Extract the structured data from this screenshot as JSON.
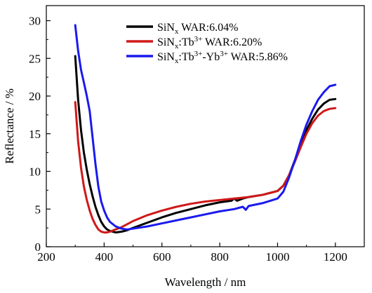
{
  "chart_data": {
    "type": "line",
    "xlabel": "Wavelength / nm",
    "ylabel": "Reflectance / %",
    "xlim": [
      200,
      1300
    ],
    "ylim": [
      0,
      32
    ],
    "x_ticks": [
      200,
      400,
      600,
      800,
      1000,
      1200
    ],
    "y_ticks": [
      0,
      5,
      10,
      15,
      20,
      25,
      30
    ],
    "legend_position": "top-center",
    "series": [
      {
        "name": "SiN_x WAR:6.04%",
        "legend": {
          "base": "SiN",
          "sub": "x",
          "rest": " WAR:6.04%"
        },
        "color": "#000000",
        "x": [
          300,
          310,
          320,
          330,
          340,
          350,
          360,
          370,
          380,
          390,
          400,
          410,
          420,
          440,
          460,
          480,
          500,
          550,
          600,
          650,
          700,
          750,
          800,
          840,
          850,
          860,
          880,
          900,
          950,
          1000,
          1020,
          1040,
          1060,
          1080,
          1100,
          1120,
          1140,
          1160,
          1180,
          1200
        ],
        "y": [
          25.3,
          19.5,
          15.5,
          12.5,
          10.2,
          8.3,
          6.7,
          5.3,
          4.2,
          3.3,
          2.7,
          2.3,
          2.1,
          1.9,
          2.0,
          2.2,
          2.5,
          3.2,
          3.9,
          4.5,
          5.0,
          5.5,
          5.9,
          6.1,
          6.4,
          6.1,
          6.4,
          6.6,
          6.9,
          7.4,
          8.1,
          9.5,
          11.5,
          13.5,
          15.5,
          17.0,
          18.2,
          19.0,
          19.5,
          19.6
        ]
      },
      {
        "name": "SiN_x:Tb3+ WAR:6.20%",
        "legend": {
          "base": "SiN",
          "sub": "x",
          "mid": ":Tb",
          "sup": "3+",
          "rest": " WAR:6.20%"
        },
        "color": "#d01818",
        "x": [
          300,
          310,
          320,
          330,
          340,
          350,
          360,
          370,
          380,
          390,
          400,
          410,
          420,
          440,
          460,
          480,
          500,
          550,
          600,
          650,
          700,
          750,
          800,
          850,
          900,
          950,
          1000,
          1020,
          1040,
          1060,
          1080,
          1100,
          1120,
          1140,
          1160,
          1180,
          1200
        ],
        "y": [
          19.2,
          14.0,
          10.5,
          8.0,
          6.2,
          4.8,
          3.7,
          2.9,
          2.3,
          2.0,
          1.9,
          1.9,
          2.0,
          2.3,
          2.6,
          3.0,
          3.4,
          4.2,
          4.8,
          5.3,
          5.7,
          6.0,
          6.2,
          6.4,
          6.6,
          6.9,
          7.4,
          8.1,
          9.5,
          11.3,
          13.2,
          15.0,
          16.4,
          17.4,
          18.0,
          18.3,
          18.4
        ]
      },
      {
        "name": "SiN_x:Tb3+-Yb3+ WAR:5.86%",
        "legend": {
          "base": "SiN",
          "sub": "x",
          "mid": ":Tb",
          "sup": "3+",
          "mid2": "-Yb",
          "sup2": "3+",
          "rest": " WAR:5.86%"
        },
        "color": "#1a1aee",
        "x": [
          300,
          310,
          320,
          330,
          340,
          350,
          360,
          370,
          380,
          390,
          400,
          410,
          420,
          440,
          460,
          480,
          500,
          550,
          600,
          650,
          700,
          750,
          800,
          850,
          880,
          890,
          900,
          950,
          1000,
          1020,
          1040,
          1060,
          1080,
          1100,
          1120,
          1140,
          1160,
          1180,
          1200
        ],
        "y": [
          29.4,
          26.0,
          23.5,
          21.8,
          20.0,
          18.0,
          14.5,
          11.0,
          8.0,
          6.0,
          4.8,
          3.9,
          3.3,
          2.7,
          2.4,
          2.3,
          2.4,
          2.7,
          3.1,
          3.5,
          3.9,
          4.3,
          4.7,
          5.0,
          5.3,
          4.9,
          5.4,
          5.8,
          6.4,
          7.3,
          9.2,
          11.5,
          14.0,
          16.2,
          18.0,
          19.5,
          20.5,
          21.3,
          21.5
        ]
      }
    ]
  }
}
